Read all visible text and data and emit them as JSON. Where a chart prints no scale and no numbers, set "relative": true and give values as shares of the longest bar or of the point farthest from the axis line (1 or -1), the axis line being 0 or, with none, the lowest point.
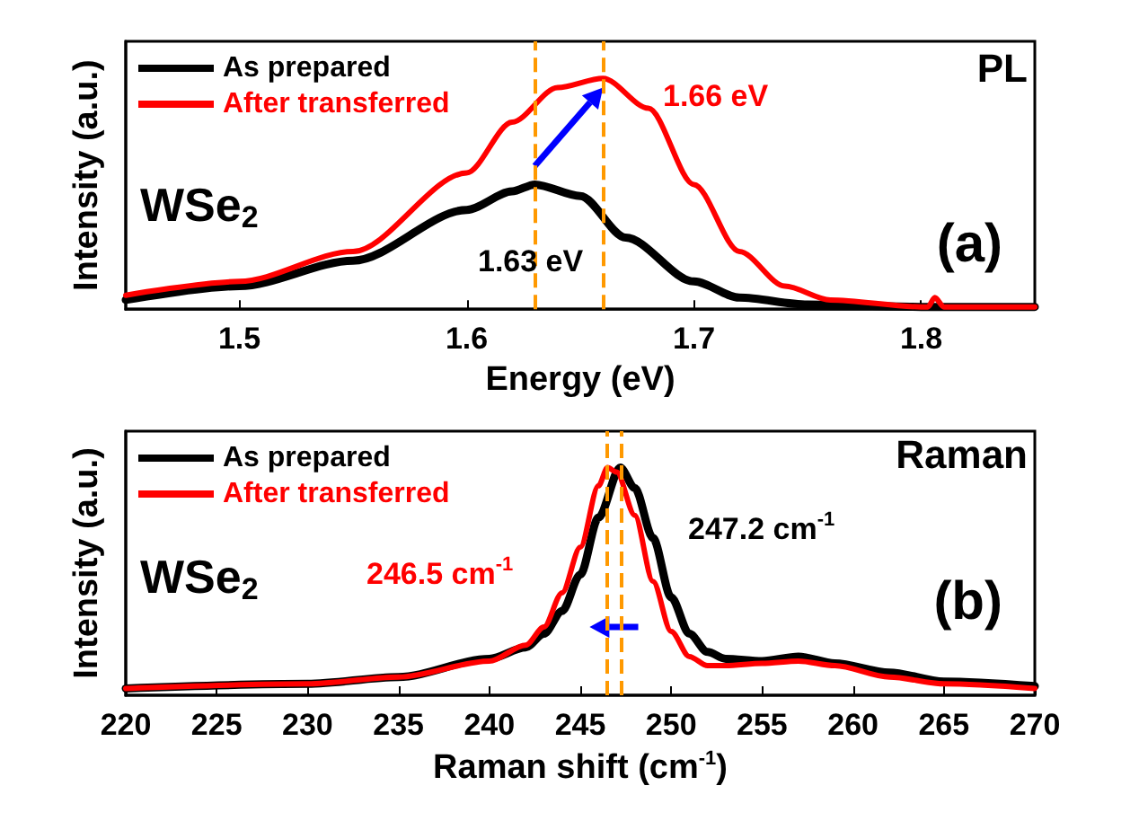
{
  "chart_data": [
    {
      "type": "line",
      "relative": true,
      "xlabel": "Energy (eV)",
      "ylabel": "Intensity (a.u.)",
      "xlim": [
        1.45,
        1.85
      ],
      "xticks": [
        1.5,
        1.6,
        1.7,
        1.8
      ],
      "legend": "top left",
      "marker": "none",
      "line_style": "solid",
      "series": [
        {
          "name": "As prepared",
          "color": "#000000",
          "x": [
            1.45,
            1.5,
            1.55,
            1.6,
            1.62,
            1.63,
            1.65,
            1.67,
            1.7,
            1.72,
            1.75,
            1.8,
            1.85
          ],
          "values": [
            0.04,
            0.1,
            0.21,
            0.43,
            0.51,
            0.54,
            0.49,
            0.31,
            0.12,
            0.05,
            0.02,
            0.01,
            0.01
          ]
        },
        {
          "name": "After transferred",
          "color": "#ff0000",
          "x": [
            1.45,
            1.5,
            1.55,
            1.6,
            1.62,
            1.64,
            1.66,
            1.68,
            1.7,
            1.72,
            1.74,
            1.76,
            1.8,
            1.803,
            1.806,
            1.81,
            1.85
          ],
          "values": [
            0.06,
            0.12,
            0.25,
            0.59,
            0.81,
            0.96,
            1,
            0.87,
            0.54,
            0.25,
            0.1,
            0.04,
            0.01,
            0.01,
            0.05,
            0.01,
            0.01
          ]
        }
      ],
      "ref_lines": [
        {
          "axis": "x",
          "value": 1.63,
          "color": "#ff9900",
          "line_style": "dashed"
        },
        {
          "axis": "x",
          "value": 1.66,
          "color": "#ff9900",
          "line_style": "dashed"
        }
      ],
      "annotations": [
        "WSe$_{2}$",
        "PL",
        "(a)",
        "1.63 eV",
        "1.66 eV"
      ]
    },
    {
      "type": "line",
      "relative": true,
      "xlabel": "Raman shift (cm$^{-1}$)",
      "ylabel": "Intensity (a.u.)",
      "xlim": [
        220,
        270
      ],
      "xticks": [
        220,
        225,
        230,
        235,
        240,
        245,
        250,
        255,
        260,
        265,
        270
      ],
      "legend": "top left",
      "marker": "none",
      "line_style": "solid",
      "series": [
        {
          "name": "As prepared",
          "color": "#000000",
          "x": [
            220,
            230,
            235,
            240,
            242,
            243,
            244,
            245,
            246,
            247.2,
            248,
            249,
            250,
            251,
            252,
            253,
            255,
            257,
            259,
            262,
            265,
            270
          ],
          "values": [
            0.03,
            0.05,
            0.08,
            0.16,
            0.21,
            0.27,
            0.37,
            0.53,
            0.78,
            1,
            0.91,
            0.69,
            0.43,
            0.27,
            0.19,
            0.16,
            0.15,
            0.17,
            0.14,
            0.1,
            0.06,
            0.04
          ]
        },
        {
          "name": "After transferred",
          "color": "#ff0000",
          "x": [
            220,
            230,
            235,
            240,
            242,
            243,
            244,
            245,
            246,
            246.5,
            247,
            248,
            249,
            250,
            251,
            252,
            253,
            255,
            257,
            259,
            262,
            265,
            270
          ],
          "values": [
            0.03,
            0.05,
            0.08,
            0.15,
            0.22,
            0.3,
            0.45,
            0.65,
            0.92,
            1,
            0.98,
            0.79,
            0.5,
            0.28,
            0.17,
            0.13,
            0.13,
            0.14,
            0.15,
            0.13,
            0.08,
            0.05,
            0.03
          ]
        }
      ],
      "ref_lines": [
        {
          "axis": "x",
          "value": 246.5,
          "color": "#ff9900",
          "line_style": "dashed"
        },
        {
          "axis": "x",
          "value": 247.2,
          "color": "#ff9900",
          "line_style": "dashed"
        }
      ],
      "annotations": [
        "WSe$_{2}$",
        "Raman",
        "(b)",
        "247.2 cm$^{-1}$",
        "246.5 cm$^{-1}$"
      ]
    }
  ]
}
